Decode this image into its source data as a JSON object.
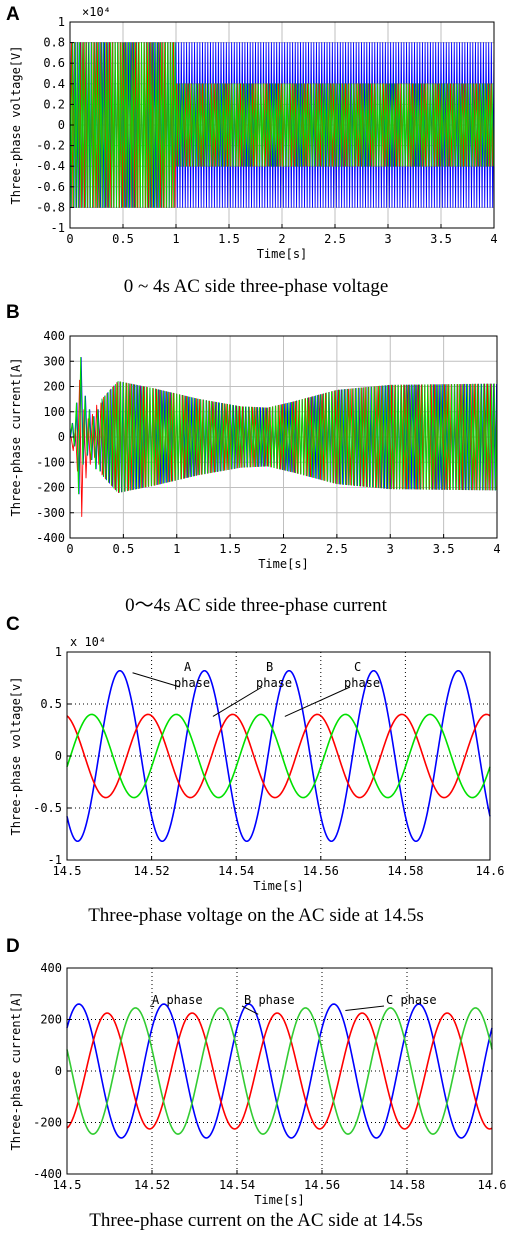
{
  "panels": [
    {
      "letter": "A",
      "caption": "0 ~ 4s AC side three-phase voltage",
      "chart_data": {
        "type": "line",
        "xlabel": "Time[s]",
        "ylabel": "Three-phase voltage[V]",
        "multiplier": "×10⁴",
        "xlim": [
          0,
          4
        ],
        "ylim": [
          -1,
          1
        ],
        "x_ticks": [
          "0",
          "0.5",
          "1",
          "1.5",
          "2",
          "2.5",
          "3",
          "3.5",
          "4"
        ],
        "y_ticks": [
          "1",
          "0.8",
          "0.6",
          "0.4",
          "0.2",
          "0",
          "-0.2",
          "-0.4",
          "-0.6",
          "-0.8",
          "-1"
        ],
        "grid": true,
        "description_values": {
          "amplitude_before_1s": 0.8,
          "blue_amplitude_after_1s": 0.8,
          "green_red_amplitude_after_1s": 0.4,
          "switch_time": 1
        },
        "series": [
          {
            "color": "#0000ff"
          },
          {
            "color": "#ff0000"
          },
          {
            "color": "#00e000"
          }
        ]
      }
    },
    {
      "letter": "B",
      "caption": "0～4s AC side three-phase current",
      "chart_data": {
        "type": "line",
        "xlabel": "Time[s]",
        "ylabel": "Three-phase current[A]",
        "xlim": [
          0,
          4
        ],
        "ylim": [
          -400,
          400
        ],
        "x_ticks": [
          "0",
          "0.5",
          "1",
          "1.5",
          "2",
          "2.5",
          "3",
          "3.5",
          "4"
        ],
        "y_ticks": [
          "400",
          "300",
          "200",
          "100",
          "0",
          "-100",
          "-200",
          "-300",
          "-400"
        ],
        "grid": true,
        "envelope": {
          "t": [
            0.3,
            0.45,
            0.8,
            1.2,
            1.6,
            1.85,
            2.1,
            2.5,
            3.0,
            4.0
          ],
          "amp": [
            150,
            220,
            190,
            150,
            120,
            115,
            140,
            185,
            205,
            210
          ]
        },
        "series": [
          {
            "color": "#0000ff"
          },
          {
            "color": "#ff0000"
          },
          {
            "color": "#00e000"
          }
        ]
      }
    },
    {
      "letter": "C",
      "caption": "Three-phase voltage on the AC side at 14.5s",
      "chart_data": {
        "type": "line",
        "xlabel": "Time[s]",
        "ylabel": "Three-phase voltage[v]",
        "multiplier": "x 10⁴",
        "xlim": [
          14.5,
          14.6
        ],
        "ylim": [
          -1,
          1
        ],
        "x_ticks": [
          "14.5",
          "14.52",
          "14.54",
          "14.56",
          "14.58",
          "14.6"
        ],
        "y_ticks": [
          "1",
          "0.5",
          "0",
          "-0.5",
          "-1"
        ],
        "grid": true,
        "frequency_hz": 50,
        "annotations": [
          {
            "line1": "A",
            "line2": "phase"
          },
          {
            "line1": "B",
            "line2": "phase"
          },
          {
            "line1": "C",
            "line2": "phase"
          }
        ],
        "series": [
          {
            "color": "#0000ff",
            "amplitude": 0.82,
            "phase_deg": -135
          },
          {
            "color": "#ff0000",
            "amplitude": 0.4,
            "phase_deg": 105
          },
          {
            "color": "#00e000",
            "amplitude": 0.4,
            "phase_deg": -15
          }
        ]
      }
    },
    {
      "letter": "D",
      "caption": "Three-phase current on the AC side at 14.5s",
      "chart_data": {
        "type": "line",
        "xlabel": "Time[s]",
        "ylabel": "Three-phase current[A]",
        "xlim": [
          14.5,
          14.6
        ],
        "ylim": [
          -400,
          400
        ],
        "x_ticks": [
          "14.5",
          "14.52",
          "14.54",
          "14.56",
          "14.58",
          "14.6"
        ],
        "y_ticks": [
          "400",
          "200",
          "0",
          "-200",
          "-400"
        ],
        "grid": true,
        "frequency_hz": 50,
        "annotations": [
          {
            "label": "A phase"
          },
          {
            "label": "B phase"
          },
          {
            "label": "C phase"
          }
        ],
        "series": [
          {
            "color": "#0000ff",
            "amplitude": 260,
            "phase_deg": 40
          },
          {
            "color": "#ff0000",
            "amplitude": 225,
            "phase_deg": -80
          },
          {
            "color": "#33cc33",
            "amplitude": 245,
            "phase_deg": 160
          }
        ]
      }
    }
  ]
}
